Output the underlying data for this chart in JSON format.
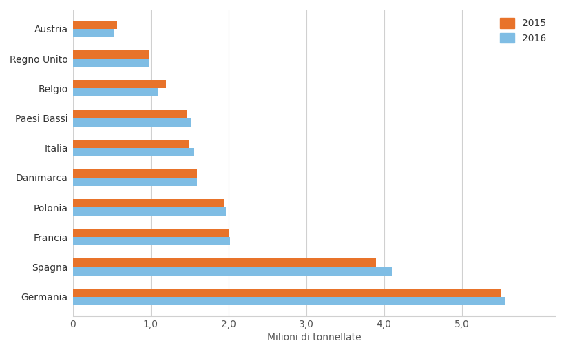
{
  "categories": [
    "Germania",
    "Spagna",
    "Francia",
    "Polonia",
    "Danimarca",
    "Italia",
    "Paesi Bassi",
    "Belgio",
    "Regno Unito",
    "Austria"
  ],
  "values_2015": [
    5.5,
    3.9,
    2.0,
    1.95,
    1.6,
    1.5,
    1.47,
    1.2,
    0.98,
    0.57
  ],
  "values_2016": [
    5.55,
    4.1,
    2.02,
    1.97,
    1.6,
    1.55,
    1.52,
    1.1,
    0.98,
    0.53
  ],
  "color_2015": "#E8732A",
  "color_2016": "#7FBDE4",
  "xlabel": "Milioni di tonnellate",
  "xlim": [
    0,
    6.2
  ],
  "xticks": [
    0,
    1.0,
    2.0,
    3.0,
    4.0,
    5.0
  ],
  "xtick_labels": [
    "0",
    "1,0",
    "2,0",
    "3,0",
    "4,0",
    "5,0"
  ],
  "legend_2015": "2015",
  "legend_2016": "2016",
  "background_color": "#ffffff",
  "grid_color": "#d0d0d0"
}
